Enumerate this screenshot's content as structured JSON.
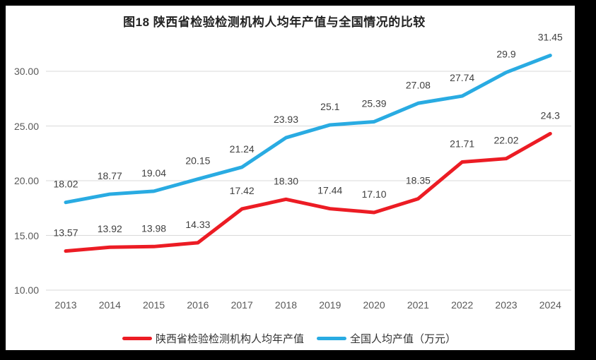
{
  "chart_data": {
    "type": "line",
    "title": "图18 陕西省检验检测机构人均年产值与全国情况的比较",
    "categories": [
      "2013",
      "2014",
      "2015",
      "2016",
      "2017",
      "2018",
      "2019",
      "2020",
      "2021",
      "2022",
      "2023",
      "2024"
    ],
    "series": [
      {
        "name": "陕西省检验检测机构人均年产值",
        "color": "#ec1c24",
        "values": [
          13.57,
          13.92,
          13.98,
          14.33,
          17.42,
          18.3,
          17.44,
          17.1,
          18.35,
          21.71,
          22.02,
          24.3
        ],
        "labels": [
          "13.57",
          "13.92",
          "13.98",
          "14.33",
          "17.42",
          "18.30",
          "17.44",
          "17.10",
          "18.35",
          "21.71",
          "22.02",
          "24.3"
        ]
      },
      {
        "name": "全国人均产值（万元）",
        "color": "#29abe2",
        "values": [
          18.02,
          18.77,
          19.04,
          20.15,
          21.24,
          23.93,
          25.1,
          25.39,
          27.08,
          27.74,
          29.9,
          31.45
        ],
        "labels": [
          "18.02",
          "18.77",
          "19.04",
          "20.15",
          "21.24",
          "23.93",
          "25.1",
          "25.39",
          "27.08",
          "27.74",
          "29.9",
          "31.45"
        ]
      }
    ],
    "yticks": [
      "10.00",
      "15.00",
      "20.00",
      "25.00",
      "30.00"
    ],
    "ylim": [
      10,
      32
    ],
    "grid": true,
    "legend_position": "bottom",
    "gridline_color": "#d9d9d9"
  }
}
